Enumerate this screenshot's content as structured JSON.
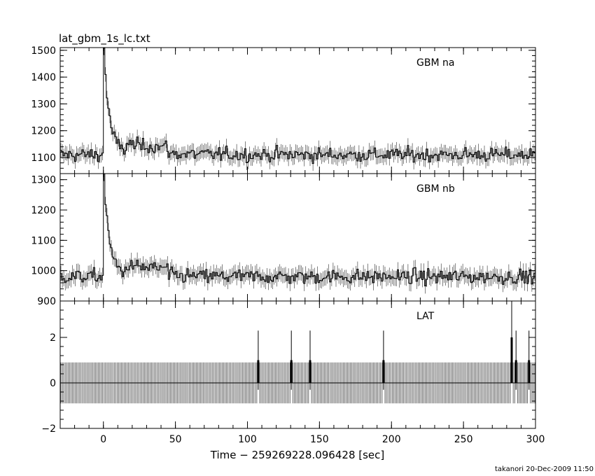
{
  "title": "lat_gbm_1s_lc.txt",
  "footer": "takanori 20-Dec-2009 11:50",
  "xaxis": {
    "label": "Time − 259269228.096428 [sec]",
    "range": [
      -30,
      300
    ],
    "ticks": [
      0,
      50,
      100,
      150,
      200,
      250,
      300
    ],
    "tick_labels": [
      "0",
      "50",
      "100",
      "150",
      "200",
      "250",
      "300"
    ]
  },
  "chart_data": [
    {
      "type": "line",
      "panel": "top",
      "label": "GBM na",
      "ylim": [
        1040,
        1510
      ],
      "yticks": [
        1100,
        1200,
        1300,
        1400,
        1500
      ],
      "ytick_labels": [
        "1100",
        "1200",
        "1300",
        "1400",
        "1500"
      ],
      "baseline": 1110,
      "noise": 30,
      "peak": {
        "x": 0,
        "value": 1480
      },
      "x_start": -30,
      "x_end": 300,
      "bin": 1
    },
    {
      "type": "line",
      "panel": "middle",
      "label": "GBM nb",
      "ylim": [
        900,
        1320
      ],
      "yticks": [
        900,
        1000,
        1100,
        1200,
        1300
      ],
      "ytick_labels": [
        "900",
        "1000",
        "1100",
        "1200",
        "1300"
      ],
      "baseline": 980,
      "noise": 28,
      "peak": {
        "x": 0,
        "value": 1290
      },
      "x_start": -30,
      "x_end": 300,
      "bin": 1
    },
    {
      "type": "scatter",
      "panel": "bottom",
      "label": "LAT",
      "ylim": [
        -2,
        3.6
      ],
      "yticks": [
        -2,
        0,
        2
      ],
      "ytick_labels": [
        "−2",
        "0",
        "2"
      ],
      "zero_count_error": 0.9,
      "events": [
        {
          "x": 107,
          "count": 1
        },
        {
          "x": 130,
          "count": 1
        },
        {
          "x": 143,
          "count": 1
        },
        {
          "x": 194,
          "count": 1
        },
        {
          "x": 283,
          "count": 2
        },
        {
          "x": 286,
          "count": 1
        },
        {
          "x": 295,
          "count": 1
        }
      ]
    }
  ]
}
